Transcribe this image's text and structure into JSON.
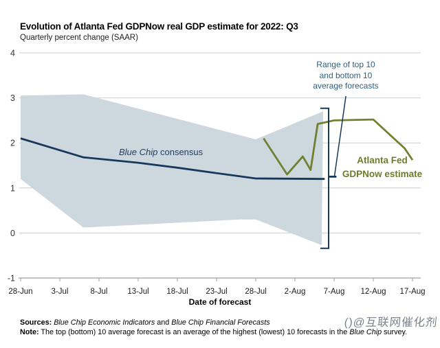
{
  "title": "Evolution of Atlanta Fed GDPNow real GDP estimate for 2022: Q3",
  "subtitle": "Quarterly percent change (SAAR)",
  "chart_data": {
    "type": "line",
    "title": "Evolution of Atlanta Fed GDPNow real GDP estimate for 2022: Q3",
    "subtitle": "Quarterly percent change (SAAR)",
    "xlabel": "Date of forecast",
    "ylabel": "Quarterly percent change (SAAR)",
    "x_unit": "days since 28-Jun-2022",
    "x_tick_labels": [
      "28-Jun",
      "3-Jul",
      "8-Jul",
      "13-Jul",
      "18-Jul",
      "23-Jul",
      "28-Jul",
      "2-Aug",
      "7-Aug",
      "12-Aug",
      "17-Aug"
    ],
    "x_tick_days": [
      0,
      5,
      10,
      15,
      20,
      25,
      30,
      35,
      40,
      45,
      50
    ],
    "y_ticks": [
      4,
      3,
      2,
      1,
      0,
      -1
    ],
    "ylim": [
      -1,
      4
    ],
    "grid": true,
    "grid_color": "#c9cdd1",
    "axis_color": "#9aa0a6",
    "band": {
      "name": "Range of top 10 and bottom 10 average forecasts",
      "color": "#cdd7de",
      "top_points": [
        [
          0,
          3.05
        ],
        [
          8,
          3.08
        ],
        [
          30,
          2.08
        ],
        [
          38.6,
          2.7
        ]
      ],
      "bottom_points": [
        [
          0,
          1.2
        ],
        [
          8,
          0.12
        ],
        [
          28,
          0.3
        ],
        [
          30,
          0.3
        ],
        [
          38.4,
          -0.27
        ]
      ]
    },
    "bracket": {
      "name": "range-of-august-survey-bracket",
      "color": "#17375c",
      "x": 39.3,
      "top": 2.77,
      "bottom": -0.34,
      "leader": [
        [
          41.5,
          3.04
        ],
        [
          40.05,
          1.27
        ]
      ]
    },
    "series": [
      {
        "id": "blue-chip-consensus-line",
        "name": "Blue Chip consensus",
        "color": "#17375c",
        "width": 2.8,
        "points": [
          [
            0,
            2.1
          ],
          [
            8,
            1.68
          ],
          [
            15,
            1.56
          ],
          [
            20,
            1.45
          ],
          [
            25,
            1.33
          ],
          [
            30,
            1.21
          ],
          [
            38.8,
            1.2
          ]
        ]
      },
      {
        "id": "blue-chip-aug-survey-segment",
        "name": "Blue Chip consensus (August survey)",
        "color": "#17375c",
        "width": 2.8,
        "points": [
          [
            39.3,
            1.25
          ],
          [
            40.3,
            1.25
          ]
        ]
      },
      {
        "id": "gdpnow-line",
        "name": "Atlanta Fed GDPNow estimate",
        "color": "#70802f",
        "width": 2.8,
        "points": [
          [
            31,
            2.1
          ],
          [
            34,
            1.3
          ],
          [
            36,
            1.7
          ],
          [
            37,
            1.4
          ],
          [
            37.9,
            2.42
          ],
          [
            40,
            2.5
          ],
          [
            45,
            2.52
          ],
          [
            49,
            1.88
          ],
          [
            50,
            1.62
          ]
        ]
      }
    ]
  },
  "labels": {
    "blue_chip_italic": "Blue Chip",
    "blue_chip_rest": " consensus",
    "range_annotation": "Range of top 10\nand bottom 10\naverage forecasts",
    "gdpnow_annotation": "Atlanta Fed\nGDPNow estimate",
    "x_axis_title": "Date of forecast"
  },
  "footer": {
    "sources_label": "Sources:",
    "sources_italic1": " Blue Chip Economic Indicators",
    "sources_mid": " and ",
    "sources_italic2": "Blue Chip Financial Forecasts",
    "note_label": "Note:",
    "note_pre": " The top (bottom) 10 average forecast is an average of the highest (lowest) 10 forecasts in the ",
    "note_italic": "Blue Chip",
    "note_post": " survey."
  },
  "watermark": "()@互联网催化剂"
}
